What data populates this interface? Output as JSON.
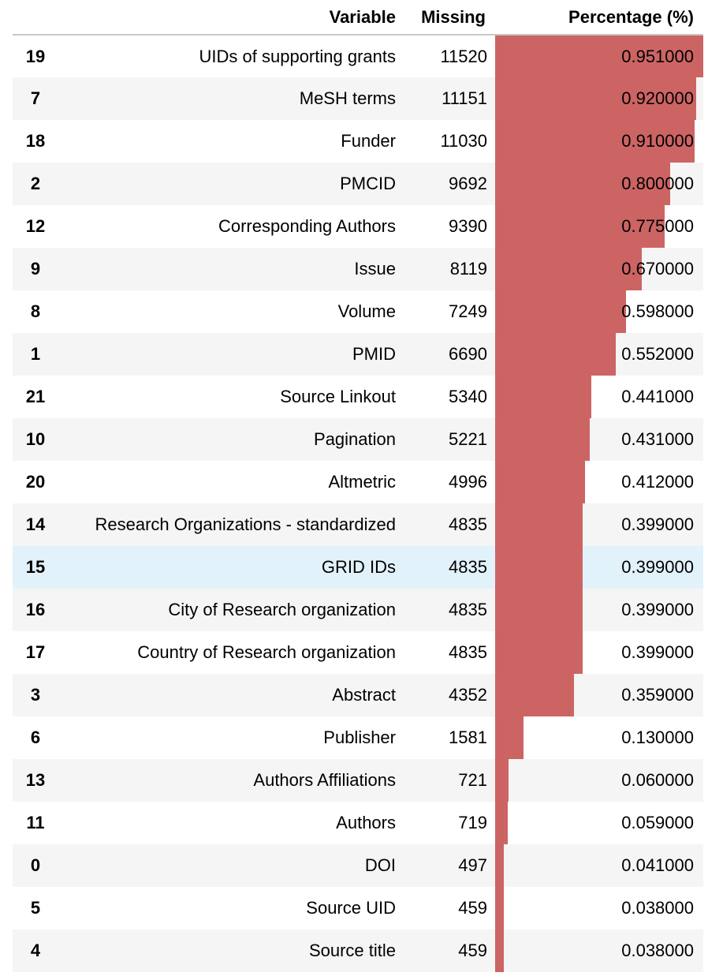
{
  "table": {
    "headers": {
      "index": "",
      "variable": "Variable",
      "missing": "Missing",
      "percentage": "Percentage (%)"
    },
    "bar_color": "#cd6464",
    "highlight_row_color": "#e2f2fb",
    "bar_max": 0.951,
    "rows": [
      {
        "index": "19",
        "variable": "UIDs of supporting grants",
        "missing": "11520",
        "percentage": "0.951000",
        "pct_value": 0.951
      },
      {
        "index": "7",
        "variable": "MeSH terms",
        "missing": "11151",
        "percentage": "0.920000",
        "pct_value": 0.92
      },
      {
        "index": "18",
        "variable": "Funder",
        "missing": "11030",
        "percentage": "0.910000",
        "pct_value": 0.91
      },
      {
        "index": "2",
        "variable": "PMCID",
        "missing": "9692",
        "percentage": "0.800000",
        "pct_value": 0.8
      },
      {
        "index": "12",
        "variable": "Corresponding Authors",
        "missing": "9390",
        "percentage": "0.775000",
        "pct_value": 0.775
      },
      {
        "index": "9",
        "variable": "Issue",
        "missing": "8119",
        "percentage": "0.670000",
        "pct_value": 0.67
      },
      {
        "index": "8",
        "variable": "Volume",
        "missing": "7249",
        "percentage": "0.598000",
        "pct_value": 0.598
      },
      {
        "index": "1",
        "variable": "PMID",
        "missing": "6690",
        "percentage": "0.552000",
        "pct_value": 0.552
      },
      {
        "index": "21",
        "variable": "Source Linkout",
        "missing": "5340",
        "percentage": "0.441000",
        "pct_value": 0.441
      },
      {
        "index": "10",
        "variable": "Pagination",
        "missing": "5221",
        "percentage": "0.431000",
        "pct_value": 0.431
      },
      {
        "index": "20",
        "variable": "Altmetric",
        "missing": "4996",
        "percentage": "0.412000",
        "pct_value": 0.412
      },
      {
        "index": "14",
        "variable": "Research Organizations - standardized",
        "missing": "4835",
        "percentage": "0.399000",
        "pct_value": 0.399
      },
      {
        "index": "15",
        "variable": "GRID IDs",
        "missing": "4835",
        "percentage": "0.399000",
        "pct_value": 0.399,
        "highlighted": true
      },
      {
        "index": "16",
        "variable": "City of Research organization",
        "missing": "4835",
        "percentage": "0.399000",
        "pct_value": 0.399
      },
      {
        "index": "17",
        "variable": "Country of Research organization",
        "missing": "4835",
        "percentage": "0.399000",
        "pct_value": 0.399
      },
      {
        "index": "3",
        "variable": "Abstract",
        "missing": "4352",
        "percentage": "0.359000",
        "pct_value": 0.359
      },
      {
        "index": "6",
        "variable": "Publisher",
        "missing": "1581",
        "percentage": "0.130000",
        "pct_value": 0.13
      },
      {
        "index": "13",
        "variable": "Authors Affiliations",
        "missing": "721",
        "percentage": "0.060000",
        "pct_value": 0.06
      },
      {
        "index": "11",
        "variable": "Authors",
        "missing": "719",
        "percentage": "0.059000",
        "pct_value": 0.059
      },
      {
        "index": "0",
        "variable": "DOI",
        "missing": "497",
        "percentage": "0.041000",
        "pct_value": 0.041
      },
      {
        "index": "5",
        "variable": "Source UID",
        "missing": "459",
        "percentage": "0.038000",
        "pct_value": 0.038
      },
      {
        "index": "4",
        "variable": "Source title",
        "missing": "459",
        "percentage": "0.038000",
        "pct_value": 0.038
      }
    ]
  }
}
